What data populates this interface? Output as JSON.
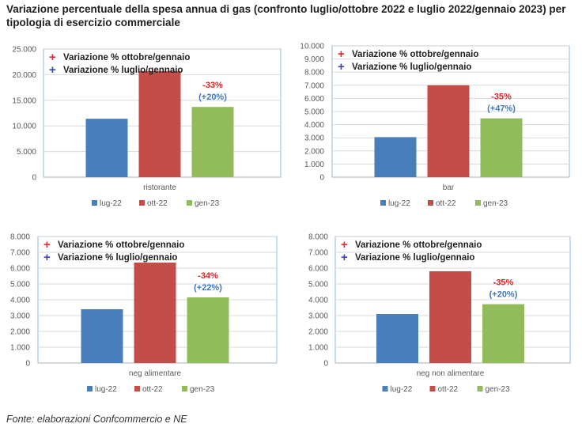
{
  "title": "Variazione percentuale della spesa annua di gas (confronto luglio/ottobre 2022 e luglio 2022/gennaio 2023) per tipologia di esercizio commerciale",
  "source": "Fonte: elaborazioni Confcommercio e NE",
  "colors": {
    "lug-22": "#4a7ebb",
    "ott-22": "#c44c49",
    "gen-23": "#92bb5c",
    "red_marker": "#e8262b",
    "blue_marker": "#3d46b8",
    "grid": "#d9d9d9",
    "border": "#a8c3e3"
  },
  "chart_data": [
    {
      "type": "bar",
      "categories": [
        "ristorante"
      ],
      "series": [
        {
          "name": "lug-22",
          "values": [
            11400
          ]
        },
        {
          "name": "ott-22",
          "values": [
            20700
          ]
        },
        {
          "name": "gen-23",
          "values": [
            13700
          ]
        }
      ],
      "ylim": [
        0,
        25000
      ],
      "yticks": [
        "0",
        "5.000",
        "10.000",
        "15.000",
        "20.000",
        "25.000"
      ],
      "notes": [
        "Variazione %  ottobre/gennaio",
        "Variazione %  luglio/gennaio"
      ],
      "annotations": [
        "-33%",
        "(+20%)"
      ],
      "legend_position": "bottom",
      "grid": true
    },
    {
      "type": "bar",
      "categories": [
        "bar"
      ],
      "series": [
        {
          "name": "lug-22",
          "values": [
            3050
          ]
        },
        {
          "name": "ott-22",
          "values": [
            7000
          ]
        },
        {
          "name": "gen-23",
          "values": [
            4480
          ]
        }
      ],
      "ylim": [
        0,
        10000
      ],
      "yticks": [
        "0",
        "1.000",
        "2.000",
        "3.000",
        "4.000",
        "5.000",
        "6.000",
        "7.000",
        "8.000",
        "9.000",
        "10.000"
      ],
      "notes": [
        "Variazione %  ottobre/gennaio",
        "Variazione %  luglio/gennaio"
      ],
      "annotations": [
        "-35%",
        "(+47%)"
      ],
      "legend_position": "bottom",
      "grid": true
    },
    {
      "type": "bar",
      "categories": [
        "neg alimentare"
      ],
      "series": [
        {
          "name": "lug-22",
          "values": [
            3400
          ]
        },
        {
          "name": "ott-22",
          "values": [
            6350
          ]
        },
        {
          "name": "gen-23",
          "values": [
            4150
          ]
        }
      ],
      "ylim": [
        0,
        8000
      ],
      "yticks": [
        "0",
        "1.000",
        "2.000",
        "3.000",
        "4.000",
        "5.000",
        "6.000",
        "7.000",
        "8.000"
      ],
      "notes": [
        "Variazione %  ottobre/gennaio",
        "Variazione %  luglio/gennaio"
      ],
      "annotations": [
        "-34%",
        "(+22%)"
      ],
      "legend_position": "bottom",
      "grid": true
    },
    {
      "type": "bar",
      "categories": [
        "neg non alimentare"
      ],
      "series": [
        {
          "name": "lug-22",
          "values": [
            3100
          ]
        },
        {
          "name": "ott-22",
          "values": [
            5800
          ]
        },
        {
          "name": "gen-23",
          "values": [
            3720
          ]
        }
      ],
      "ylim": [
        0,
        8000
      ],
      "yticks": [
        "0",
        "1.000",
        "2.000",
        "3.000",
        "4.000",
        "5.000",
        "6.000",
        "7.000",
        "8.000"
      ],
      "notes": [
        "Variazione %  ottobre/gennaio",
        "Variazione %  luglio/gennaio"
      ],
      "annotations": [
        "-35%",
        "(+20%)"
      ],
      "legend_position": "bottom",
      "grid": true
    }
  ]
}
